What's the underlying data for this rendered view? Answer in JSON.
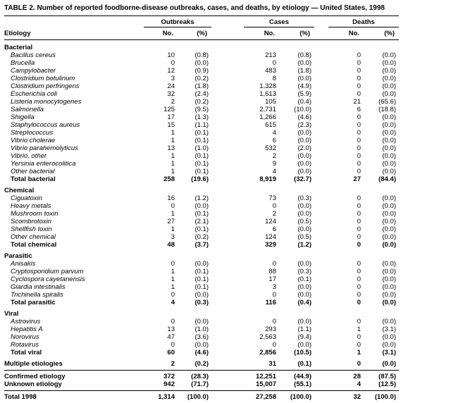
{
  "title": "TABLE 2. Number of reported foodborne-disease outbreaks, cases, and deaths, by etiology — United States, 1998",
  "table": {
    "groups": [
      "Outbreaks",
      "Cases",
      "Deaths"
    ],
    "col_etiology": "Etiology",
    "col_no": "No.",
    "col_pct": "(%)",
    "sections": [
      {
        "name": "Bacterial",
        "rows": [
          {
            "label": "Bacillus cereus",
            "values": [
              "10",
              "(0.8)",
              "213",
              "(0.8)",
              "0",
              "(0.0)"
            ]
          },
          {
            "label": "Brucella",
            "values": [
              "0",
              "(0.0)",
              "0",
              "(0.0)",
              "0",
              "(0.0)"
            ]
          },
          {
            "label": "Campylobacter",
            "values": [
              "12",
              "(0.9)",
              "483",
              "(1.8)",
              "0",
              "(0.0)"
            ]
          },
          {
            "label": "Clostridium botulinum",
            "values": [
              "3",
              "(0.2)",
              "8",
              "(0.0)",
              "0",
              "(0.0)"
            ]
          },
          {
            "label": "Clostridium perfringens",
            "values": [
              "24",
              "(1.8)",
              "1,328",
              "(4.9)",
              "0",
              "(0.0)"
            ]
          },
          {
            "label": "Escherichia coli",
            "values": [
              "32",
              "(2.4)",
              "1,613",
              "(5.9)",
              "0",
              "(0.0)"
            ]
          },
          {
            "label": "Listeria monocytogenes",
            "values": [
              "2",
              "(0.2)",
              "105",
              "(0.4)",
              "21",
              "(65.6)"
            ]
          },
          {
            "label": "Salmonella",
            "values": [
              "125",
              "(9.5)",
              "2,731",
              "(10.0)",
              "6",
              "(18.8)"
            ]
          },
          {
            "label": "Shigella",
            "values": [
              "17",
              "(1.3)",
              "1,266",
              "(4.6)",
              "0",
              "(0.0)"
            ]
          },
          {
            "label": "Staphylococcus aureus",
            "values": [
              "15",
              "(1.1)",
              "615",
              "(2.3)",
              "0",
              "(0.0)"
            ]
          },
          {
            "label": "Streptococcus",
            "values": [
              "1",
              "(0.1)",
              "4",
              "(0.0)",
              "0",
              "(0.0)"
            ]
          },
          {
            "label": "Vibrio cholerae",
            "values": [
              "1",
              "(0.1)",
              "6",
              "(0.0)",
              "0",
              "(0.0)"
            ]
          },
          {
            "label": "Vibrio parahemolyticus",
            "values": [
              "13",
              "(1.0)",
              "532",
              "(2.0)",
              "0",
              "(0.0)"
            ]
          },
          {
            "label": "Vibrio, other",
            "values": [
              "1",
              "(0.1)",
              "2",
              "(0.0)",
              "0",
              "(0.0)"
            ]
          },
          {
            "label": "Yersinia enterocolitica",
            "values": [
              "1",
              "(0.1)",
              "9",
              "(0.0)",
              "0",
              "(0.0)"
            ]
          },
          {
            "label": "Other bacterial",
            "values": [
              "1",
              "(0.1)",
              "4",
              "(0.0)",
              "0",
              "(0.0)"
            ]
          }
        ],
        "total": {
          "label": "Total bacterial",
          "values": [
            "258",
            "(19.6)",
            "8,919",
            "(32.7)",
            "27",
            "(84.4)"
          ]
        }
      },
      {
        "name": "Chemical",
        "rows": [
          {
            "label": "Ciguatoxin",
            "values": [
              "16",
              "(1.2)",
              "73",
              "(0.3)",
              "0",
              "(0.0)"
            ]
          },
          {
            "label": "Heavy metals",
            "values": [
              "0",
              "(0.0)",
              "0",
              "(0.0)",
              "0",
              "(0.0)"
            ]
          },
          {
            "label": "Mushroom toxin",
            "values": [
              "1",
              "(0.1)",
              "2",
              "(0.0)",
              "0",
              "(0.0)"
            ]
          },
          {
            "label": "Scombrotoxin",
            "values": [
              "27",
              "(2.1)",
              "124",
              "(0.5)",
              "0",
              "(0.0)"
            ]
          },
          {
            "label": "Shellfish toxin",
            "values": [
              "1",
              "(0.1)",
              "6",
              "(0.0)",
              "0",
              "(0.0)"
            ]
          },
          {
            "label": "Other chemical",
            "values": [
              "3",
              "(0.2)",
              "124",
              "(0.5)",
              "0",
              "(0.0)"
            ]
          }
        ],
        "total": {
          "label": "Total chemical",
          "values": [
            "48",
            "(3.7)",
            "329",
            "(1.2)",
            "0",
            "(0.0)"
          ]
        }
      },
      {
        "name": "Parasitic",
        "rows": [
          {
            "label": "Anisakis",
            "values": [
              "0",
              "(0.0)",
              "0",
              "(0.0)",
              "0",
              "(0.0)"
            ]
          },
          {
            "label": "Cryptosporidium parvum",
            "values": [
              "1",
              "(0.1)",
              "88",
              "(0.3)",
              "0",
              "(0.0)"
            ]
          },
          {
            "label": "Cyclospora cayetanensis",
            "values": [
              "1",
              "(0.1)",
              "17",
              "(0.1)",
              "0",
              "(0.0)"
            ]
          },
          {
            "label": "Giardia intestinalis",
            "values": [
              "1",
              "(0.1)",
              "3",
              "(0.0)",
              "0",
              "(0.0)"
            ]
          },
          {
            "label": "Trichinella spiralis",
            "values": [
              "0",
              "(0.0)",
              "0",
              "(0.0)",
              "0",
              "(0.0)"
            ]
          }
        ],
        "total": {
          "label": "Total parasitic",
          "values": [
            "4",
            "(0.3)",
            "116",
            "(0.4)",
            "0",
            "(0.0)"
          ]
        }
      },
      {
        "name": "Viral",
        "rows": [
          {
            "label": "Astrovirus",
            "values": [
              "0",
              "(0.0)",
              "0",
              "(0.0)",
              "0",
              "(0.0)"
            ]
          },
          {
            "label": "Hepatitis A",
            "values": [
              "13",
              "(1.0)",
              "293",
              "(1.1)",
              "1",
              "(3.1)"
            ]
          },
          {
            "label": "Norovirus",
            "values": [
              "47",
              "(3.6)",
              "2,563",
              "(9.4)",
              "0",
              "(0.0)"
            ]
          },
          {
            "label": "Rotavirus",
            "values": [
              "0",
              "(0.0)",
              "0",
              "(0.0)",
              "0",
              "(0.0)"
            ]
          }
        ],
        "total": {
          "label": "Total viral",
          "values": [
            "60",
            "(4.6)",
            "2,856",
            "(10.5)",
            "1",
            "(3.1)"
          ]
        }
      }
    ],
    "multiple": {
      "label": "Multiple etiologies",
      "values": [
        "2",
        "(0.2)",
        "31",
        "(0.1)",
        "0",
        "(0.0)"
      ]
    },
    "summary": [
      {
        "label": "Confirmed etiology",
        "values": [
          "372",
          "(28.3)",
          "12,251",
          "(44.9)",
          "28",
          "(87.5)"
        ]
      },
      {
        "label": "Unknown etiology",
        "values": [
          "942",
          "(71.7)",
          "15,007",
          "(55.1)",
          "4",
          "(12.5)"
        ]
      }
    ],
    "grand_total": {
      "label": "Total 1998",
      "values": [
        "1,314",
        "(100.0)",
        "27,258",
        "(100.0)",
        "32",
        "(100.0)"
      ]
    }
  }
}
